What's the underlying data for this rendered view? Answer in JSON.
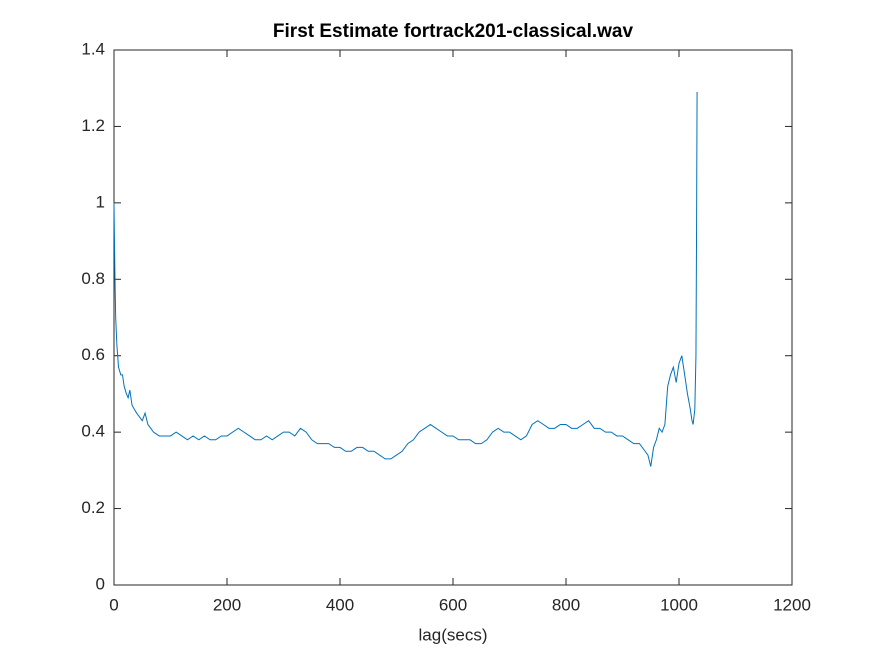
{
  "chart_data": {
    "type": "line",
    "title": "First Estimate fortrack201-classical.wav",
    "x_label": "lag(secs)",
    "x": [
      0,
      1,
      2,
      3,
      5,
      8,
      12,
      15,
      18,
      22,
      25,
      28,
      32,
      36,
      40,
      45,
      50,
      55,
      60,
      65,
      70,
      80,
      90,
      100,
      110,
      120,
      130,
      140,
      150,
      160,
      170,
      180,
      190,
      200,
      210,
      220,
      230,
      240,
      250,
      260,
      270,
      280,
      290,
      300,
      310,
      320,
      330,
      340,
      350,
      360,
      370,
      380,
      390,
      400,
      410,
      420,
      430,
      440,
      450,
      460,
      470,
      480,
      490,
      500,
      510,
      520,
      530,
      540,
      550,
      560,
      570,
      580,
      590,
      600,
      610,
      620,
      630,
      640,
      650,
      660,
      670,
      680,
      690,
      700,
      710,
      720,
      730,
      740,
      750,
      760,
      770,
      780,
      790,
      800,
      810,
      820,
      830,
      840,
      850,
      860,
      870,
      880,
      890,
      900,
      910,
      920,
      930,
      940,
      945,
      950,
      955,
      960,
      965,
      970,
      975,
      980,
      985,
      990,
      995,
      1000,
      1005,
      1010,
      1015,
      1020,
      1023,
      1025,
      1028,
      1030,
      1031,
      1032
    ],
    "series": [
      {
        "color": "#0072bd",
        "values": [
          1.0,
          0.88,
          0.78,
          0.7,
          0.63,
          0.57,
          0.55,
          0.55,
          0.52,
          0.5,
          0.49,
          0.51,
          0.47,
          0.46,
          0.45,
          0.44,
          0.43,
          0.45,
          0.42,
          0.41,
          0.4,
          0.39,
          0.39,
          0.39,
          0.4,
          0.39,
          0.38,
          0.39,
          0.38,
          0.39,
          0.38,
          0.38,
          0.39,
          0.39,
          0.4,
          0.41,
          0.4,
          0.39,
          0.38,
          0.38,
          0.39,
          0.38,
          0.39,
          0.4,
          0.4,
          0.39,
          0.41,
          0.4,
          0.38,
          0.37,
          0.37,
          0.37,
          0.36,
          0.36,
          0.35,
          0.35,
          0.36,
          0.36,
          0.35,
          0.35,
          0.34,
          0.33,
          0.33,
          0.34,
          0.35,
          0.37,
          0.38,
          0.4,
          0.41,
          0.42,
          0.41,
          0.4,
          0.39,
          0.39,
          0.38,
          0.38,
          0.38,
          0.37,
          0.37,
          0.38,
          0.4,
          0.41,
          0.4,
          0.4,
          0.39,
          0.38,
          0.39,
          0.42,
          0.43,
          0.42,
          0.41,
          0.41,
          0.42,
          0.42,
          0.41,
          0.41,
          0.42,
          0.43,
          0.41,
          0.41,
          0.4,
          0.4,
          0.39,
          0.39,
          0.38,
          0.37,
          0.37,
          0.35,
          0.34,
          0.31,
          0.36,
          0.38,
          0.41,
          0.4,
          0.42,
          0.52,
          0.55,
          0.57,
          0.53,
          0.58,
          0.6,
          0.55,
          0.5,
          0.46,
          0.43,
          0.42,
          0.46,
          0.6,
          0.9,
          1.29
        ]
      }
    ],
    "xlim": [
      0,
      1200
    ],
    "xticks": [
      0,
      200,
      400,
      600,
      800,
      1000,
      1200
    ],
    "ylim": [
      0,
      1.4
    ],
    "yticks": [
      0,
      0.2,
      0.4,
      0.6,
      0.8,
      1,
      1.2,
      1.4
    ]
  }
}
